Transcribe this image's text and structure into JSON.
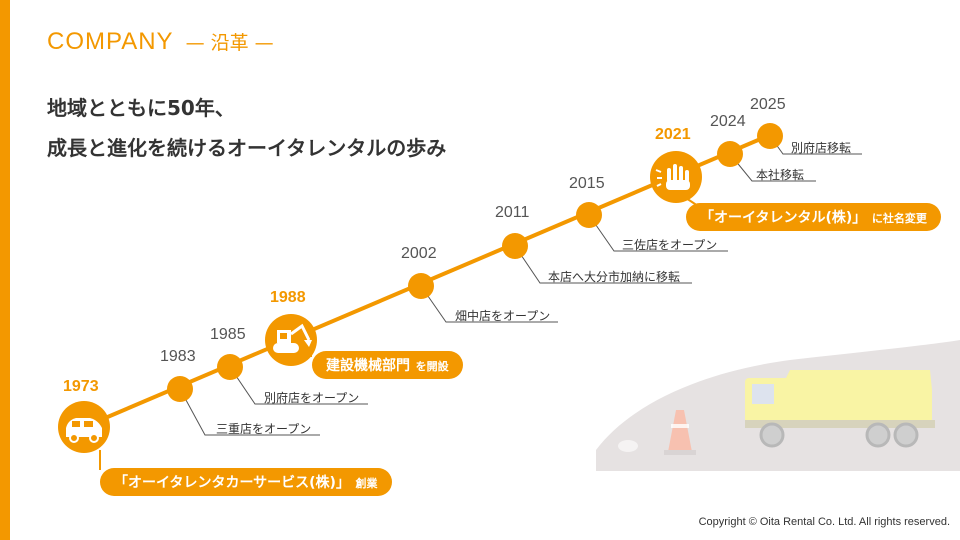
{
  "header": {
    "title_en": "COMPANY",
    "title_jp": "— 沿革 —"
  },
  "lead": {
    "line1": "地域とともに50年、",
    "line2": "成長と進化を続けるオーイタレンタルの歩み"
  },
  "timeline": [
    {
      "year": "1973",
      "highlight": true,
      "pill_main": "「オーイタレンタカーサービス(株)」",
      "pill_sub": "創業",
      "icon": "car-icon"
    },
    {
      "year": "1983",
      "highlight": false,
      "event": "三重店をオープン"
    },
    {
      "year": "1985",
      "highlight": false,
      "event": "別府店をオープン"
    },
    {
      "year": "1988",
      "highlight": true,
      "pill_main": "建設機械部門",
      "pill_sub": "を開設",
      "icon": "excavator-icon"
    },
    {
      "year": "2002",
      "highlight": false,
      "event": "畑中店をオープン"
    },
    {
      "year": "2011",
      "highlight": false,
      "event": "本店へ大分市加納に移転"
    },
    {
      "year": "2015",
      "highlight": false,
      "event": "三佐店をオープン"
    },
    {
      "year": "2021",
      "highlight": true,
      "pill_main": "「オーイタレンタル(株)」",
      "pill_sub": "に社名変更",
      "icon": "hand-icon"
    },
    {
      "year": "2024",
      "highlight": false,
      "event": "本社移転"
    },
    {
      "year": "2025",
      "highlight": false,
      "event": "別府店移転"
    }
  ],
  "illustration": {
    "icon": "dump-truck-icon"
  },
  "footer": {
    "copyright": "Copyright © Oita Rental Co. Ltd. All rights reserved."
  },
  "colors": {
    "accent": "#F39800",
    "text": "#333333",
    "connector": "#555555"
  }
}
